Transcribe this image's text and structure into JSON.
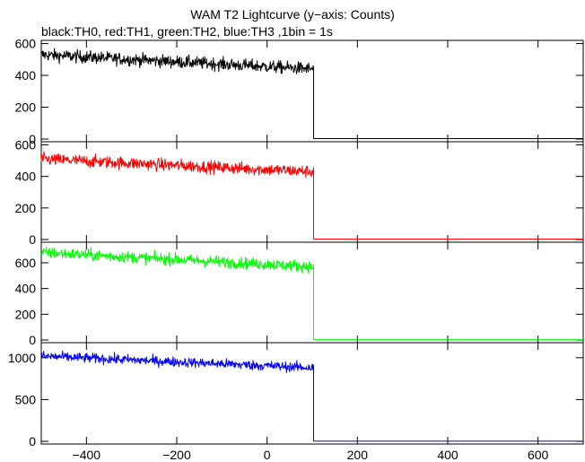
{
  "title": "WAM T2 Lightcurve (y−axis: Counts)",
  "subtitle": "black:TH0, red:TH1, green:TH2, blue:TH3 ,1bin = 1s",
  "chart_data": {
    "type": "line",
    "xlim": [
      -500,
      700
    ],
    "x_ticks": [
      -400,
      -200,
      0,
      200,
      400,
      600
    ],
    "x_tick_labels": [
      "−400",
      "−200",
      "0",
      "200",
      "400",
      "600"
    ],
    "cutoff_x": 103,
    "panels": [
      {
        "name": "TH0",
        "color": "#000000",
        "ylim": [
          0,
          620
        ],
        "y_ticks": [
          0,
          200,
          400,
          600
        ],
        "y_tick_labels": [
          "0",
          "200",
          "400",
          "600"
        ],
        "start_level": 530,
        "end_level": 440,
        "noise": 28,
        "after_level": 3
      },
      {
        "name": "TH1",
        "color": "#ff0000",
        "ylim": [
          0,
          620
        ],
        "y_ticks": [
          0,
          200,
          400,
          600
        ],
        "y_tick_labels": [
          "0",
          "200",
          "400",
          "600"
        ],
        "start_level": 510,
        "end_level": 430,
        "noise": 28,
        "after_level": 3
      },
      {
        "name": "TH2",
        "color": "#00ff00",
        "ylim": [
          0,
          760
        ],
        "y_ticks": [
          0,
          200,
          400,
          600
        ],
        "y_tick_labels": [
          "0",
          "200",
          "400",
          "600"
        ],
        "start_level": 680,
        "end_level": 570,
        "noise": 32,
        "after_level": 3
      },
      {
        "name": "TH3",
        "color": "#0000ff",
        "ylim": [
          0,
          1180
        ],
        "y_ticks": [
          0,
          500,
          1000
        ],
        "y_tick_labels": [
          "0",
          "500",
          "1000"
        ],
        "start_level": 1020,
        "end_level": 880,
        "noise": 42,
        "after_level": 3
      }
    ]
  }
}
